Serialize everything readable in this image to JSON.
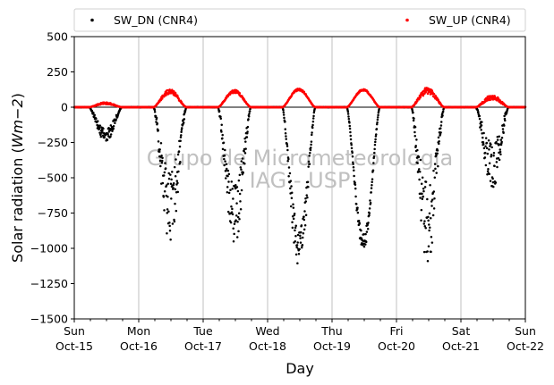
{
  "chart_data": {
    "type": "scatter",
    "xlabel": "Day",
    "ylabel_text": "Solar radiation (",
    "ylabel_unit": "Wm−2",
    "ylabel_close": ")",
    "ylim": [
      -1500,
      500
    ],
    "yticks": [
      500,
      250,
      0,
      -250,
      -500,
      -750,
      -1000,
      -1250,
      -1500
    ],
    "ytick_labels": [
      "500",
      "250",
      "0",
      "−250",
      "−500",
      "−750",
      "−1000",
      "−1250",
      "−1500"
    ],
    "xlim_days": [
      0,
      7
    ],
    "xticks": [
      {
        "day": 0,
        "weekday": "Sun",
        "date": "Oct-15"
      },
      {
        "day": 1,
        "weekday": "Mon",
        "date": "Oct-16"
      },
      {
        "day": 2,
        "weekday": "Tue",
        "date": "Oct-17"
      },
      {
        "day": 3,
        "weekday": "Wed",
        "date": "Oct-18"
      },
      {
        "day": 4,
        "weekday": "Thu",
        "date": "Oct-19"
      },
      {
        "day": 5,
        "weekday": "Fri",
        "date": "Oct-20"
      },
      {
        "day": 6,
        "weekday": "Sat",
        "date": "Oct-21"
      },
      {
        "day": 7,
        "weekday": "Sun",
        "date": "Oct-22"
      }
    ],
    "grid": "vertical",
    "legend_placement": "top",
    "watermark": [
      "Grupo de Micrometeorologia",
      "IAG - USP"
    ],
    "series": [
      {
        "name": "SW_DN (CNR4)",
        "color": "#000000",
        "days": [
          {
            "day": 0,
            "peak": -200,
            "noise": 0.25
          },
          {
            "day": 1,
            "peak": -720,
            "noise": 0.35
          },
          {
            "day": 2,
            "peak": -780,
            "noise": 0.3
          },
          {
            "day": 3,
            "peak": -1000,
            "noise": 0.15
          },
          {
            "day": 4,
            "peak": -960,
            "noise": 0.06
          },
          {
            "day": 5,
            "peak": -830,
            "noise": 0.35
          },
          {
            "day": 6,
            "peak": -420,
            "noise": 0.4
          }
        ]
      },
      {
        "name": "SW_UP (CNR4)",
        "color": "#ff0000",
        "days": [
          {
            "day": 0,
            "peak": 28,
            "noise": 0.25
          },
          {
            "day": 1,
            "peak": 110,
            "noise": 0.15
          },
          {
            "day": 2,
            "peak": 112,
            "noise": 0.1
          },
          {
            "day": 3,
            "peak": 125,
            "noise": 0.06
          },
          {
            "day": 4,
            "peak": 122,
            "noise": 0.05
          },
          {
            "day": 5,
            "peak": 118,
            "noise": 0.2
          },
          {
            "day": 6,
            "peak": 70,
            "noise": 0.25
          }
        ]
      }
    ]
  }
}
